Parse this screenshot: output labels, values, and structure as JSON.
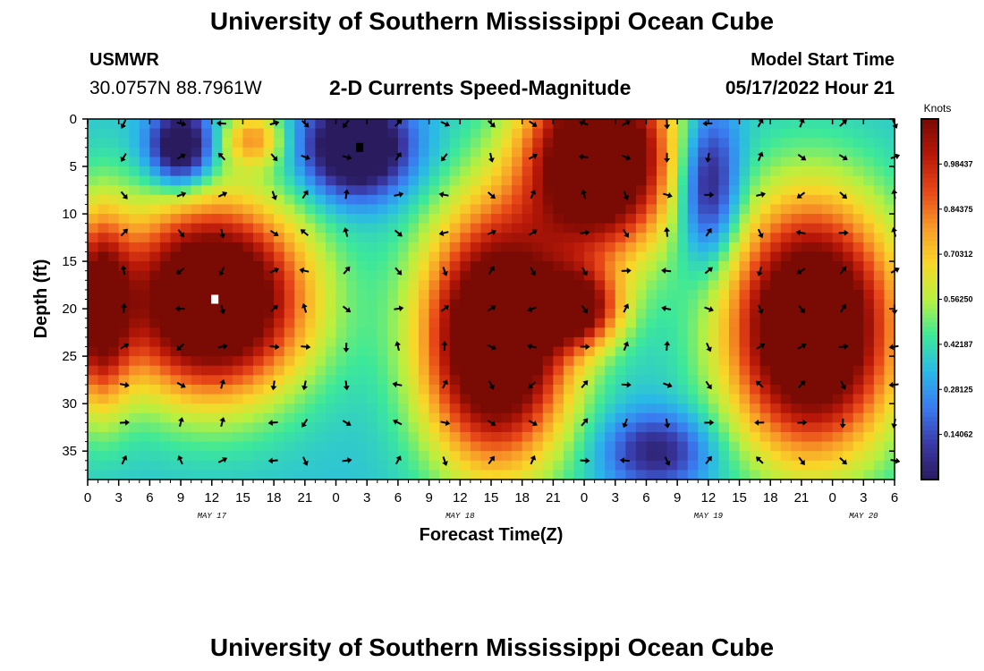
{
  "header": {
    "title": "University of Southern Mississippi Ocean Cube",
    "station_name": "USMWR",
    "station_coords": "30.0757N  88.7961W",
    "chart_title": "2-D Currents Speed-Magnitude",
    "model_start_label": "Model Start Time",
    "model_start_value": "05/17/2022 Hour 21"
  },
  "footer": {
    "title": "University of Southern Mississippi Ocean Cube"
  },
  "chart_data": {
    "type": "heatmap",
    "title": "2-D Currents Speed-Magnitude",
    "xlabel": "Forecast Time(Z)",
    "ylabel": "Depth (ft)",
    "units": "Knots",
    "x_ticks": [
      "0",
      "3",
      "6",
      "9",
      "12",
      "15",
      "18",
      "21",
      "0",
      "3",
      "6",
      "9",
      "12",
      "15",
      "18",
      "21",
      "0",
      "3",
      "6",
      "9",
      "12",
      "15",
      "18",
      "21",
      "0",
      "3",
      "6"
    ],
    "date_labels": [
      {
        "label": "MAY 17",
        "hour_index": 12
      },
      {
        "label": "MAY 18",
        "hour_index": 36
      },
      {
        "label": "MAY 19",
        "hour_index": 60
      },
      {
        "label": "MAY 20",
        "hour_index": 75
      }
    ],
    "x_range": [
      0,
      78
    ],
    "y_ticks": [
      0,
      5,
      10,
      15,
      20,
      25,
      30,
      35
    ],
    "y_range": [
      0,
      38
    ],
    "colorbar_ticks": [
      "0.14062",
      "0.28125",
      "0.42187",
      "0.56250",
      "0.70312",
      "0.84375",
      "0.98437"
    ],
    "colorbar_range": [
      0,
      1.125
    ],
    "colors": [
      "#2a1a5e",
      "#3a3aa8",
      "#3a7af0",
      "#2ab8e8",
      "#3ce89a",
      "#b8f040",
      "#f8d828",
      "#f89a28",
      "#e84818",
      "#b81808",
      "#7a0a04"
    ],
    "speed_blobs": [
      {
        "t": 12,
        "d": 19,
        "st": 9,
        "sd": 10,
        "a": 1.0
      },
      {
        "t": 1,
        "d": 20,
        "st": 3,
        "sd": 10,
        "a": 0.65
      },
      {
        "t": 9,
        "d": 3,
        "st": 3,
        "sd": 4,
        "a": -0.5
      },
      {
        "t": 39.5,
        "d": 23,
        "st": 7,
        "sd": 13,
        "a": 1.0
      },
      {
        "t": 26,
        "d": 3,
        "st": 5,
        "sd": 5,
        "a": -0.55
      },
      {
        "t": 49.5,
        "d": 4,
        "st": 7,
        "sd": 10,
        "a": 1.0
      },
      {
        "t": 47.5,
        "d": 20,
        "st": 4,
        "sd": 4,
        "a": 0.55
      },
      {
        "t": 70,
        "d": 22,
        "st": 8,
        "sd": 13,
        "a": 1.0
      },
      {
        "t": 60,
        "d": 7,
        "st": 3,
        "sd": 8,
        "a": -0.4
      },
      {
        "t": 55,
        "d": 35,
        "st": 5,
        "sd": 4,
        "a": -0.3
      },
      {
        "t": 16,
        "d": 2,
        "st": 3,
        "sd": 3,
        "a": 0.35
      }
    ],
    "speed_base": 0.32,
    "arrow_depths": [
      0,
      4,
      8,
      12,
      16,
      20,
      24,
      28,
      32,
      36
    ],
    "arrow_times": [
      3.5,
      9,
      13,
      18,
      21,
      25,
      30,
      34.5,
      39,
      43,
      48,
      52,
      56,
      60,
      65,
      69,
      73,
      78
    ],
    "markers": [
      {
        "t": 12.3,
        "d": 19,
        "color": "#ffffff"
      },
      {
        "t": 26.3,
        "d": 3,
        "color": "#000000"
      }
    ]
  }
}
